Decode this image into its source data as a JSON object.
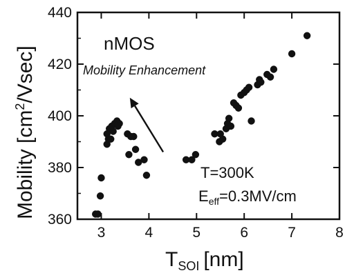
{
  "chart_data": {
    "type": "scatter",
    "xlabel": {
      "main": "T",
      "sub": "SOI",
      "unit": "[nm]"
    },
    "ylabel": {
      "main": "Mobility [cm",
      "sup": "2",
      "tail": "/Vsec]"
    },
    "xlim": [
      2.5,
      8
    ],
    "ylim": [
      360,
      440
    ],
    "x_ticks": [
      "3",
      "4",
      "5",
      "6",
      "7",
      "8"
    ],
    "y_ticks": [
      "360",
      "380",
      "400",
      "420",
      "440"
    ],
    "annotations": {
      "device": "nMOS",
      "enhancement": "Mobility Enhancement",
      "temperature": "T=300K",
      "field_main": "E",
      "field_sub": "eff",
      "field_tail": "=0.3MV/cm"
    },
    "arrow": {
      "from": [
        4.3,
        386
      ],
      "to": [
        3.6,
        407
      ]
    },
    "points": [
      [
        2.88,
        362
      ],
      [
        2.93,
        362
      ],
      [
        2.98,
        369
      ],
      [
        3.0,
        376
      ],
      [
        3.12,
        389
      ],
      [
        3.15,
        391
      ],
      [
        3.12,
        393
      ],
      [
        3.17,
        395
      ],
      [
        3.2,
        391
      ],
      [
        3.22,
        396
      ],
      [
        3.28,
        397
      ],
      [
        3.33,
        398
      ],
      [
        3.38,
        397
      ],
      [
        3.35,
        396
      ],
      [
        3.25,
        394
      ],
      [
        3.55,
        393
      ],
      [
        3.62,
        392
      ],
      [
        3.58,
        385
      ],
      [
        3.72,
        387
      ],
      [
        3.68,
        392
      ],
      [
        3.78,
        382
      ],
      [
        3.9,
        383
      ],
      [
        3.95,
        377
      ],
      [
        4.78,
        383
      ],
      [
        4.9,
        383
      ],
      [
        4.98,
        385
      ],
      [
        5.38,
        393
      ],
      [
        5.5,
        393
      ],
      [
        5.48,
        390
      ],
      [
        5.55,
        391
      ],
      [
        5.62,
        395
      ],
      [
        5.65,
        397
      ],
      [
        5.72,
        396
      ],
      [
        5.68,
        399
      ],
      [
        5.78,
        405
      ],
      [
        5.83,
        404
      ],
      [
        5.88,
        403
      ],
      [
        5.93,
        408
      ],
      [
        6.0,
        409
      ],
      [
        6.05,
        410
      ],
      [
        6.1,
        411
      ],
      [
        6.15,
        398
      ],
      [
        6.28,
        412
      ],
      [
        6.32,
        414
      ],
      [
        6.35,
        413
      ],
      [
        6.48,
        416
      ],
      [
        6.55,
        415
      ],
      [
        6.62,
        418
      ],
      [
        7.0,
        424
      ],
      [
        7.32,
        431
      ]
    ]
  }
}
